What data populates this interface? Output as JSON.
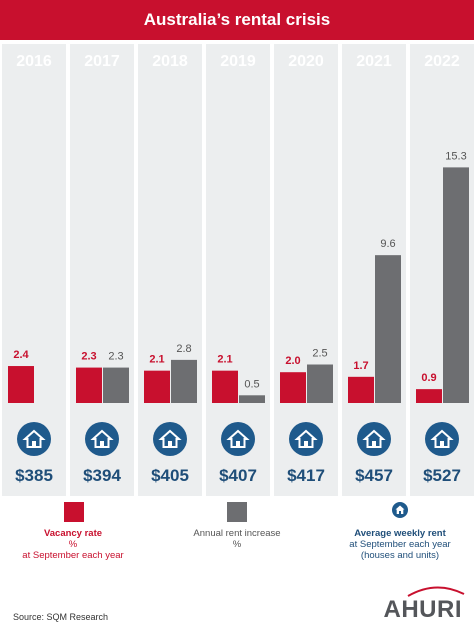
{
  "title": "Australia’s rental crisis",
  "colors": {
    "brand_red": "#c8102e",
    "vacancy": "#c8102e",
    "rent_increase": "#6d6e71",
    "column_bg": "#eceeef",
    "year_label": "#ffffff",
    "icon_blue": "#1f5a8c",
    "price": "#1f4e79"
  },
  "chart_data": {
    "type": "bar",
    "categories": [
      "2016",
      "2017",
      "2018",
      "2019",
      "2020",
      "2021",
      "2022"
    ],
    "series": [
      {
        "name": "Vacancy rate %",
        "values": [
          2.4,
          2.3,
          2.1,
          2.1,
          2.0,
          1.7,
          0.9
        ],
        "labels": [
          "2.4",
          "2.3",
          "2.1",
          "2.1",
          "2.0",
          "1.7",
          "0.9"
        ]
      },
      {
        "name": "Annual rent increase %",
        "values": [
          null,
          2.3,
          2.8,
          0.5,
          2.5,
          9.6,
          15.3
        ],
        "labels": [
          "",
          "2.3",
          "2.8",
          "0.5",
          "2.5",
          "9.6",
          "15.3"
        ]
      }
    ],
    "weekly_rent": [
      "$385",
      "$394",
      "$405",
      "$407",
      "$417",
      "$457",
      "$527"
    ],
    "ylim": [
      0,
      15.3
    ],
    "icon": "house-icon"
  },
  "legend": {
    "vacancy": {
      "title": "Vacancy rate",
      "line2": "%",
      "line3": "at September each year"
    },
    "rent_increase": {
      "title": "Annual rent increase",
      "line2": "%"
    },
    "weekly_rent": {
      "title": "Average weekly rent",
      "line2": "at September each year",
      "line3": "(houses and units)"
    }
  },
  "source": "Source: SQM Research",
  "logo": "AHURI"
}
